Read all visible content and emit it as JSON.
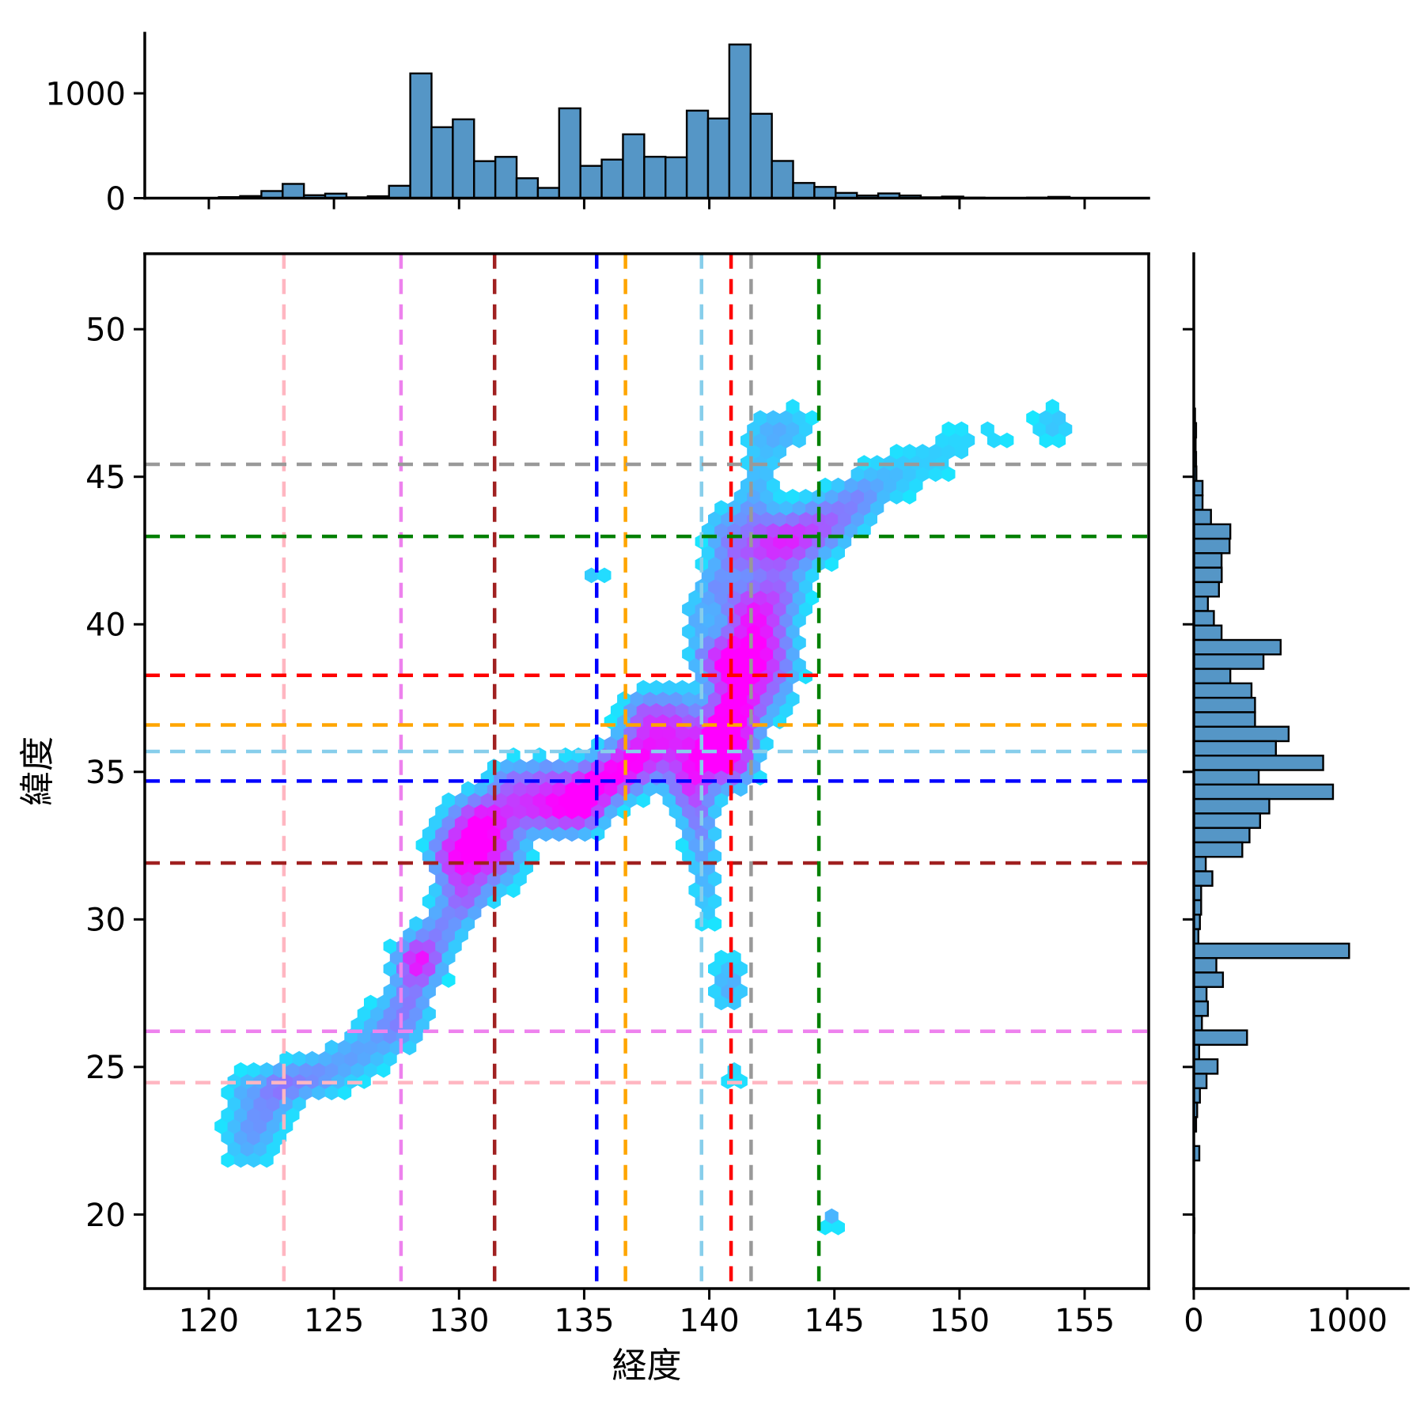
{
  "figure": {
    "background": "#ffffff"
  },
  "chart_data": {
    "type": "hexbin_joint",
    "xlabel": "経度",
    "ylabel": "緯度",
    "x_ticks": [
      120,
      125,
      130,
      135,
      140,
      145,
      150,
      155
    ],
    "y_ticks": [
      20,
      25,
      30,
      35,
      40,
      45,
      50
    ],
    "x_range": [
      117.44,
      157.56
    ],
    "y_range": [
      17.49,
      52.56
    ],
    "grid": false,
    "colormap": {
      "name": "cool",
      "low": "#00ffff",
      "high": "#ff00ff"
    },
    "hex": {
      "dlon": 0.519,
      "dlat": 0.381,
      "max_density": 1.7,
      "threshold": 0.15,
      "lon_min": 119.2,
      "lon_max": 157.3,
      "lat_min": 18.8,
      "lat_max": 48.4
    },
    "clusters": [
      [
        121.6,
        22.7,
        0.7,
        0.8,
        0.55
      ],
      [
        122.4,
        23.6,
        0.6,
        0.6,
        0.45
      ],
      [
        121.3,
        24.3,
        0.4,
        0.4,
        0.3
      ],
      [
        122.9,
        24.4,
        0.7,
        0.45,
        0.65
      ],
      [
        124.3,
        24.7,
        0.8,
        0.5,
        0.6
      ],
      [
        125.8,
        25.4,
        0.8,
        0.55,
        0.5
      ],
      [
        127.3,
        26.3,
        0.8,
        0.6,
        0.65
      ],
      [
        128.0,
        27.3,
        0.6,
        0.6,
        0.65
      ],
      [
        128.4,
        28.6,
        0.6,
        0.55,
        1.55
      ],
      [
        129.3,
        29.7,
        0.6,
        0.55,
        0.65
      ],
      [
        130.2,
        30.6,
        0.6,
        0.5,
        0.7
      ],
      [
        130.2,
        31.6,
        0.7,
        0.6,
        0.95
      ],
      [
        130.5,
        32.7,
        0.8,
        0.7,
        1.15
      ],
      [
        129.5,
        32.3,
        0.5,
        0.5,
        0.6
      ],
      [
        131.6,
        32.2,
        0.7,
        0.7,
        0.85
      ],
      [
        131.0,
        33.5,
        0.8,
        0.55,
        0.9
      ],
      [
        132.6,
        33.9,
        0.9,
        0.6,
        0.95
      ],
      [
        134.0,
        33.8,
        0.8,
        0.6,
        1.1
      ],
      [
        135.0,
        33.9,
        0.6,
        0.55,
        1.35
      ],
      [
        132.0,
        34.8,
        0.5,
        0.45,
        0.5
      ],
      [
        133.5,
        34.9,
        0.7,
        0.45,
        0.6
      ],
      [
        135.4,
        34.6,
        0.7,
        0.5,
        1.0
      ],
      [
        136.2,
        34.9,
        0.7,
        0.55,
        0.9
      ],
      [
        136.9,
        35.4,
        0.7,
        0.6,
        1.05
      ],
      [
        137.9,
        35.9,
        0.8,
        0.7,
        0.95
      ],
      [
        137.3,
        37.0,
        0.5,
        0.5,
        0.7
      ],
      [
        138.6,
        36.8,
        0.7,
        0.7,
        0.85
      ],
      [
        139.2,
        34.6,
        0.6,
        0.6,
        1.0
      ],
      [
        139.5,
        33.5,
        0.45,
        0.8,
        0.6
      ],
      [
        139.8,
        32.2,
        0.4,
        0.9,
        0.4
      ],
      [
        139.9,
        30.6,
        0.35,
        0.8,
        0.3
      ],
      [
        140.8,
        27.8,
        0.5,
        0.7,
        0.5
      ],
      [
        141.0,
        24.6,
        0.25,
        0.35,
        0.3
      ],
      [
        139.9,
        35.6,
        0.8,
        0.6,
        1.25
      ],
      [
        140.6,
        36.3,
        0.7,
        0.7,
        1.3
      ],
      [
        141.0,
        35.4,
        0.6,
        0.7,
        0.9
      ],
      [
        141.1,
        37.2,
        0.7,
        0.7,
        1.2
      ],
      [
        140.9,
        38.7,
        0.6,
        0.6,
        1.5
      ],
      [
        142.1,
        38.4,
        0.9,
        0.9,
        1.05
      ],
      [
        142.0,
        39.7,
        0.8,
        0.8,
        1.0
      ],
      [
        141.5,
        40.6,
        0.7,
        0.6,
        0.8
      ],
      [
        142.8,
        41.1,
        0.7,
        0.6,
        0.75
      ],
      [
        139.9,
        38.9,
        0.5,
        0.5,
        0.55
      ],
      [
        139.5,
        40.2,
        0.45,
        0.5,
        0.45
      ],
      [
        140.2,
        41.3,
        0.5,
        0.5,
        0.55
      ],
      [
        141.0,
        42.3,
        0.6,
        0.5,
        0.6
      ],
      [
        142.3,
        42.6,
        0.8,
        0.6,
        0.95
      ],
      [
        143.5,
        42.9,
        0.8,
        0.65,
        1.0
      ],
      [
        144.8,
        43.5,
        0.8,
        0.6,
        0.8
      ],
      [
        146.0,
        44.3,
        0.7,
        0.55,
        0.6
      ],
      [
        141.7,
        43.8,
        0.6,
        0.6,
        0.55
      ],
      [
        140.5,
        43.2,
        0.5,
        0.5,
        0.45
      ],
      [
        147.3,
        45.0,
        0.8,
        0.55,
        0.35
      ],
      [
        149.0,
        45.7,
        0.9,
        0.6,
        0.25
      ],
      [
        151.0,
        46.3,
        1.0,
        0.6,
        0.22
      ],
      [
        153.8,
        46.8,
        0.6,
        0.45,
        0.35
      ],
      [
        142.0,
        45.0,
        0.5,
        0.5,
        0.3
      ],
      [
        142.2,
        46.3,
        0.7,
        0.7,
        0.3
      ],
      [
        143.2,
        46.6,
        0.8,
        0.6,
        0.35
      ],
      [
        135.5,
        41.7,
        0.25,
        0.25,
        0.4
      ],
      [
        144.9,
        19.85,
        0.22,
        0.3,
        0.45
      ]
    ],
    "ref_lines": [
      {
        "name": "pink",
        "color": "#ffb6c1",
        "lon": 123.0,
        "lat": 24.47
      },
      {
        "name": "violet",
        "color": "#ee82ee",
        "lon": 127.68,
        "lat": 26.21
      },
      {
        "name": "darkred",
        "color": "#a02020",
        "lon": 131.42,
        "lat": 31.91
      },
      {
        "name": "blue",
        "color": "#0000ff",
        "lon": 135.5,
        "lat": 34.69
      },
      {
        "name": "orange",
        "color": "#ffa500",
        "lon": 136.65,
        "lat": 36.59
      },
      {
        "name": "skyblue",
        "color": "#87ceeb",
        "lon": 139.69,
        "lat": 35.69
      },
      {
        "name": "red",
        "color": "#ff0000",
        "lon": 140.87,
        "lat": 38.27
      },
      {
        "name": "gray",
        "color": "#999999",
        "lon": 141.67,
        "lat": 45.42
      },
      {
        "name": "green",
        "color": "#008000",
        "lon": 144.38,
        "lat": 42.98
      }
    ],
    "marginal_top": {
      "type": "bar",
      "bin_start": 120.4,
      "bin_width": 0.85,
      "counts": [
        10,
        20,
        68,
        136,
        28,
        43,
        8,
        18,
        118,
        1190,
        677,
        752,
        353,
        394,
        190,
        98,
        857,
        308,
        368,
        609,
        395,
        390,
        835,
        760,
        1466,
        805,
        355,
        145,
        107,
        50,
        25,
        45,
        25,
        8,
        15,
        5,
        0,
        0,
        5,
        12,
        0,
        0,
        0,
        0
      ],
      "axis_ticks": [
        0,
        1000
      ],
      "bar_color": "#5596c6",
      "bar_edge": "#000000"
    },
    "marginal_right": {
      "type": "bar",
      "bin_start": 47.8,
      "bin_width": 0.49,
      "counts": [
        0,
        8,
        15,
        12,
        15,
        17,
        57,
        57,
        112,
        238,
        233,
        181,
        182,
        164,
        92,
        131,
        181,
        566,
        454,
        238,
        376,
        399,
        399,
        618,
        535,
        843,
        423,
        907,
        492,
        432,
        363,
        316,
        78,
        121,
        48,
        48,
        40,
        30,
        1012,
        147,
        190,
        83,
        92,
        53,
        347,
        35,
        155,
        83,
        40,
        22,
        15,
        0,
        36,
        0,
        0,
        0,
        0,
        4
      ],
      "axis_ticks": [
        0,
        1000
      ],
      "bar_color": "#5596c6",
      "bar_edge": "#000000"
    }
  },
  "style": {
    "spine_color": "#000000",
    "spine_width": 3.5,
    "tick_len": 14,
    "tick_width": 3,
    "tick_font_size": 40,
    "label_font_size": 44,
    "dash_width": 4.5,
    "dash_pattern": "19 13"
  }
}
